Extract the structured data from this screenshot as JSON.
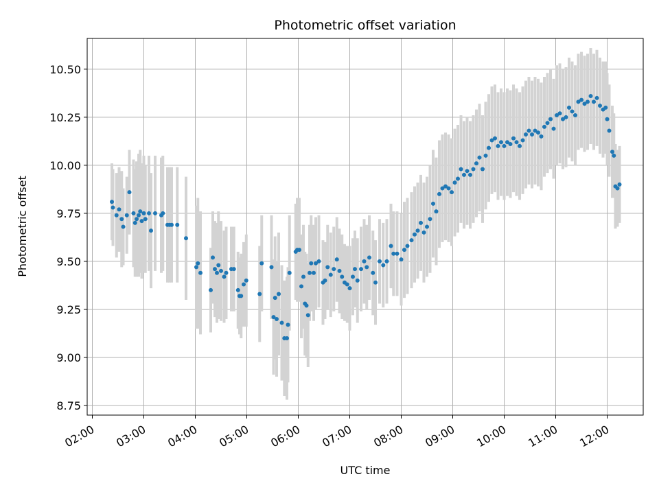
{
  "chart_data": {
    "type": "scatter",
    "title": "Photometric offset variation",
    "xlabel": "UTC time",
    "ylabel": "Photometric offset",
    "x_unit": "hours UTC",
    "xlim": [
      1.9,
      12.7
    ],
    "ylim": [
      8.7,
      10.66
    ],
    "x_ticks": [
      2,
      3,
      4,
      5,
      6,
      7,
      8,
      9,
      10,
      11,
      12
    ],
    "x_tick_labels": [
      "02:00",
      "03:00",
      "04:00",
      "05:00",
      "06:00",
      "07:00",
      "08:00",
      "09:00",
      "10:00",
      "11:00",
      "12:00"
    ],
    "y_ticks": [
      8.75,
      9.0,
      9.25,
      9.5,
      9.75,
      10.0,
      10.25,
      10.5
    ],
    "y_tick_labels": [
      "8.75",
      "9.00",
      "9.25",
      "9.50",
      "9.75",
      "10.00",
      "10.25",
      "10.50"
    ],
    "grid": true,
    "colors": {
      "point": "#1f77b4",
      "errorbar": "#d3d3d3",
      "grid": "#b0b0b0"
    },
    "series": [
      {
        "points": [
          [
            2.38,
            9.81,
            0.2
          ],
          [
            2.4,
            9.78,
            0.2
          ],
          [
            2.47,
            9.74,
            0.22
          ],
          [
            2.52,
            9.77,
            0.22
          ],
          [
            2.57,
            9.72,
            0.25
          ],
          [
            2.6,
            9.68,
            0.2
          ],
          [
            2.67,
            9.74,
            0.2
          ],
          [
            2.72,
            9.86,
            0.22
          ],
          [
            2.8,
            9.75,
            0.28
          ],
          [
            2.83,
            9.7,
            0.28
          ],
          [
            2.86,
            9.72,
            0.3
          ],
          [
            2.9,
            9.74,
            0.32
          ],
          [
            2.93,
            9.76,
            0.32
          ],
          [
            2.96,
            9.71,
            0.3
          ],
          [
            3.0,
            9.75,
            0.3
          ],
          [
            3.03,
            9.72,
            0.28
          ],
          [
            3.1,
            9.75,
            0.3
          ],
          [
            3.14,
            9.66,
            0.3
          ],
          [
            3.22,
            9.75,
            0.3
          ],
          [
            3.34,
            9.74,
            0.3
          ],
          [
            3.37,
            9.75,
            0.3
          ],
          [
            3.46,
            9.69,
            0.3
          ],
          [
            3.5,
            9.69,
            0.3
          ],
          [
            3.54,
            9.69,
            0.3
          ],
          [
            3.65,
            9.69,
            0.3
          ],
          [
            3.82,
            9.62,
            0.32
          ],
          [
            4.02,
            9.47,
            0.32
          ],
          [
            4.05,
            9.49,
            0.34
          ],
          [
            4.1,
            9.44,
            0.32
          ],
          [
            4.3,
            9.35,
            0.22
          ],
          [
            4.34,
            9.52,
            0.24
          ],
          [
            4.38,
            9.46,
            0.25
          ],
          [
            4.42,
            9.44,
            0.26
          ],
          [
            4.45,
            9.48,
            0.28
          ],
          [
            4.5,
            9.45,
            0.26
          ],
          [
            4.56,
            9.42,
            0.24
          ],
          [
            4.6,
            9.44,
            0.24
          ],
          [
            4.7,
            9.46,
            0.22
          ],
          [
            4.75,
            9.46,
            0.22
          ],
          [
            4.83,
            9.35,
            0.2
          ],
          [
            4.86,
            9.32,
            0.2
          ],
          [
            4.89,
            9.32,
            0.22
          ],
          [
            4.94,
            9.38,
            0.22
          ],
          [
            4.99,
            9.4,
            0.24
          ],
          [
            5.25,
            9.33,
            0.25
          ],
          [
            5.29,
            9.49,
            0.25
          ],
          [
            5.48,
            9.47,
            0.27
          ],
          [
            5.52,
            9.21,
            0.3
          ],
          [
            5.55,
            9.31,
            0.32
          ],
          [
            5.58,
            9.2,
            0.3
          ],
          [
            5.62,
            9.33,
            0.32
          ],
          [
            5.68,
            9.18,
            0.3
          ],
          [
            5.73,
            9.1,
            0.3
          ],
          [
            5.78,
            9.1,
            0.32
          ],
          [
            5.8,
            9.17,
            0.3
          ],
          [
            5.83,
            9.44,
            0.3
          ],
          [
            5.95,
            9.55,
            0.25
          ],
          [
            5.98,
            9.56,
            0.27
          ],
          [
            6.02,
            9.56,
            0.27
          ],
          [
            6.06,
            9.37,
            0.27
          ],
          [
            6.1,
            9.42,
            0.27
          ],
          [
            6.13,
            9.28,
            0.27
          ],
          [
            6.16,
            9.27,
            0.27
          ],
          [
            6.19,
            9.22,
            0.27
          ],
          [
            6.22,
            9.44,
            0.25
          ],
          [
            6.25,
            9.49,
            0.25
          ],
          [
            6.3,
            9.44,
            0.25
          ],
          [
            6.34,
            9.49,
            0.24
          ],
          [
            6.4,
            9.5,
            0.24
          ],
          [
            6.48,
            9.39,
            0.22
          ],
          [
            6.52,
            9.4,
            0.2
          ],
          [
            6.57,
            9.47,
            0.22
          ],
          [
            6.63,
            9.43,
            0.22
          ],
          [
            6.69,
            9.46,
            0.22
          ],
          [
            6.75,
            9.51,
            0.22
          ],
          [
            6.8,
            9.45,
            0.22
          ],
          [
            6.85,
            9.42,
            0.22
          ],
          [
            6.9,
            9.39,
            0.2
          ],
          [
            6.95,
            9.38,
            0.2
          ],
          [
            7.0,
            9.36,
            0.22
          ],
          [
            7.06,
            9.42,
            0.2
          ],
          [
            7.1,
            9.46,
            0.2
          ],
          [
            7.15,
            9.4,
            0.22
          ],
          [
            7.22,
            9.46,
            0.22
          ],
          [
            7.28,
            9.5,
            0.22
          ],
          [
            7.33,
            9.47,
            0.22
          ],
          [
            7.38,
            9.52,
            0.22
          ],
          [
            7.45,
            9.44,
            0.22
          ],
          [
            7.5,
            9.39,
            0.22
          ],
          [
            7.58,
            9.5,
            0.22
          ],
          [
            7.65,
            9.48,
            0.22
          ],
          [
            7.72,
            9.5,
            0.22
          ],
          [
            7.8,
            9.58,
            0.22
          ],
          [
            7.85,
            9.54,
            0.22
          ],
          [
            7.92,
            9.54,
            0.22
          ],
          [
            8.0,
            9.51,
            0.24
          ],
          [
            8.06,
            9.56,
            0.25
          ],
          [
            8.12,
            9.58,
            0.25
          ],
          [
            8.2,
            9.61,
            0.25
          ],
          [
            8.26,
            9.64,
            0.25
          ],
          [
            8.32,
            9.66,
            0.25
          ],
          [
            8.38,
            9.7,
            0.25
          ],
          [
            8.44,
            9.65,
            0.26
          ],
          [
            8.5,
            9.68,
            0.26
          ],
          [
            8.56,
            9.72,
            0.28
          ],
          [
            8.62,
            9.8,
            0.28
          ],
          [
            8.68,
            9.76,
            0.28
          ],
          [
            8.74,
            9.85,
            0.28
          ],
          [
            8.8,
            9.88,
            0.28
          ],
          [
            8.86,
            9.89,
            0.28
          ],
          [
            8.92,
            9.88,
            0.28
          ],
          [
            8.98,
            9.86,
            0.28
          ],
          [
            9.04,
            9.91,
            0.28
          ],
          [
            9.1,
            9.93,
            0.28
          ],
          [
            9.16,
            9.98,
            0.28
          ],
          [
            9.22,
            9.95,
            0.28
          ],
          [
            9.28,
            9.97,
            0.28
          ],
          [
            9.34,
            9.95,
            0.28
          ],
          [
            9.4,
            9.98,
            0.28
          ],
          [
            9.46,
            10.01,
            0.28
          ],
          [
            9.52,
            10.04,
            0.28
          ],
          [
            9.58,
            9.98,
            0.28
          ],
          [
            9.64,
            10.05,
            0.28
          ],
          [
            9.7,
            10.09,
            0.28
          ],
          [
            9.76,
            10.13,
            0.28
          ],
          [
            9.82,
            10.14,
            0.28
          ],
          [
            9.88,
            10.1,
            0.28
          ],
          [
            9.94,
            10.12,
            0.28
          ],
          [
            10.0,
            10.1,
            0.28
          ],
          [
            10.06,
            10.12,
            0.28
          ],
          [
            10.12,
            10.11,
            0.28
          ],
          [
            10.18,
            10.14,
            0.28
          ],
          [
            10.24,
            10.12,
            0.28
          ],
          [
            10.3,
            10.1,
            0.28
          ],
          [
            10.36,
            10.13,
            0.28
          ],
          [
            10.42,
            10.16,
            0.28
          ],
          [
            10.48,
            10.18,
            0.28
          ],
          [
            10.54,
            10.16,
            0.28
          ],
          [
            10.6,
            10.18,
            0.28
          ],
          [
            10.66,
            10.17,
            0.28
          ],
          [
            10.72,
            10.15,
            0.28
          ],
          [
            10.78,
            10.2,
            0.26
          ],
          [
            10.84,
            10.22,
            0.26
          ],
          [
            10.9,
            10.24,
            0.26
          ],
          [
            10.96,
            10.19,
            0.26
          ],
          [
            11.02,
            10.26,
            0.26
          ],
          [
            11.08,
            10.27,
            0.26
          ],
          [
            11.14,
            10.24,
            0.26
          ],
          [
            11.2,
            10.25,
            0.26
          ],
          [
            11.26,
            10.3,
            0.26
          ],
          [
            11.32,
            10.28,
            0.26
          ],
          [
            11.38,
            10.26,
            0.26
          ],
          [
            11.44,
            10.33,
            0.25
          ],
          [
            11.5,
            10.34,
            0.25
          ],
          [
            11.56,
            10.32,
            0.25
          ],
          [
            11.62,
            10.33,
            0.25
          ],
          [
            11.68,
            10.36,
            0.25
          ],
          [
            11.74,
            10.33,
            0.25
          ],
          [
            11.8,
            10.35,
            0.25
          ],
          [
            11.86,
            10.31,
            0.25
          ],
          [
            11.92,
            10.29,
            0.25
          ],
          [
            11.97,
            10.3,
            0.24
          ],
          [
            12.0,
            10.24,
            0.24
          ],
          [
            12.04,
            10.18,
            0.24
          ],
          [
            12.1,
            10.07,
            0.24
          ],
          [
            12.13,
            10.05,
            0.22
          ],
          [
            12.16,
            9.89,
            0.22
          ],
          [
            12.2,
            9.88,
            0.2
          ],
          [
            12.24,
            9.9,
            0.2
          ]
        ]
      }
    ]
  }
}
